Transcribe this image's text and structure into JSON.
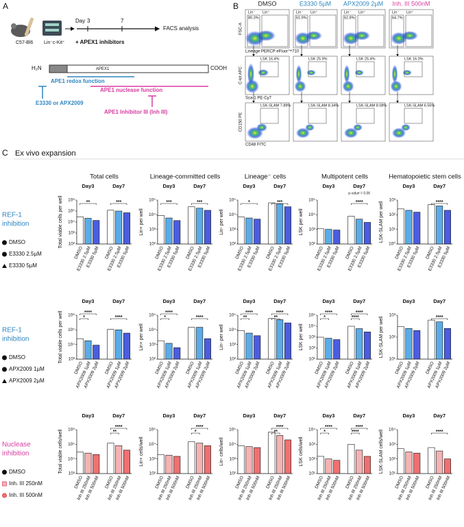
{
  "schema": {
    "label": "A",
    "mouse": "C57-Bl6",
    "cells": "Lin⁻c-Kit⁺",
    "day": "Day",
    "day_marks": [
      "3",
      "7"
    ],
    "readout": "FACS analysis",
    "treatment": "+ APEX1 inhibitors",
    "protein": {
      "n_term": "H₂N",
      "name": "APEX1",
      "c_term": "COOH"
    },
    "redox": "APE1 redox function",
    "nuclease": "APE1 nuclease function",
    "redox_inhibitors": "E3330 or APX2009",
    "nuclease_inhibitor": "APE1 Inhibitor III (Inh III)"
  },
  "flow": {
    "label": "B",
    "columns": [
      {
        "name": "DMSO",
        "color": "#222222"
      },
      {
        "name": "E3330 5µM",
        "color": "#2e86c1"
      },
      {
        "name": "APX2009 2µM",
        "color": "#2e86c1"
      },
      {
        "name": "Inh. III 500nM",
        "color": "#d63ca0"
      }
    ],
    "rows": [
      {
        "y_label": "FSC-A",
        "x_label": "Lineage PERCP eFluor™710",
        "gate_names": [
          "Lin⁻",
          "Lin⁺"
        ],
        "gates": [
          "80.3%",
          "61.9%",
          "62.8%",
          "64.7%"
        ]
      },
      {
        "y_label": "C-kit APC",
        "x_label": "Sca-1 PE-Cy7",
        "gates": [
          "LSK 16.4%",
          "LSK 25.9%",
          "LSK 25.4%",
          "LSK 16.0%"
        ]
      },
      {
        "y_label": "CD150 PE",
        "x_label": "CD48 FITC",
        "gates": [
          "LSK-SLAM 7.89%",
          "LSK-SLAM 8.34%",
          "LSK-SLAM 8.08%",
          "LSK-SLAM 6.55%"
        ]
      }
    ]
  },
  "expansion": {
    "label": "C",
    "title": "Ex vivo expansion",
    "columns": [
      "Total cells",
      "Lineage-committed cells",
      "Lineage⁻ cells",
      "Multipotent cells",
      "Hematopoietic stem cells"
    ],
    "rows": [
      {
        "label_lines": [
          "REF-1",
          "inhibition"
        ],
        "color": "#2e86c1",
        "legend": [
          {
            "name": "DMSO",
            "marker": "circle",
            "color": "#111111"
          },
          {
            "name": "E3330 2.5µM",
            "marker": "circle",
            "color": "#111111"
          },
          {
            "name": "E3330 5µM",
            "marker": "triangle",
            "color": "#111111"
          }
        ]
      },
      {
        "label_lines": [
          "REF-1",
          "inhibition"
        ],
        "color": "#2e86c1",
        "legend": [
          {
            "name": "DMSO",
            "marker": "circle",
            "color": "#111111"
          },
          {
            "name": "APX2009 1µM",
            "marker": "circle",
            "color": "#111111"
          },
          {
            "name": "APX2009 2µM",
            "marker": "triangle",
            "color": "#111111"
          }
        ]
      },
      {
        "label_lines": [
          "Nuclease",
          "inhibition"
        ],
        "color": "#d63ca0",
        "legend": [
          {
            "name": "DMSO",
            "marker": "circle",
            "color": "#111111"
          },
          {
            "name": "Inh. III 250nM",
            "marker": "square",
            "color": "#e06a8a"
          },
          {
            "name": "Inh. III 500nM",
            "marker": "circle",
            "color": "#e05050"
          }
        ]
      }
    ]
  },
  "chart_data": [
    {
      "type": "bar",
      "ylabel": "Total viable cells per well",
      "log": true,
      "ylim": [
        100,
        1000000
      ],
      "yticks": [
        {
          "value": 100,
          "label": "10²"
        },
        {
          "value": 1000,
          "label": "10³"
        },
        {
          "value": 10000,
          "label": "10⁴"
        },
        {
          "value": 100000,
          "label": "10⁵"
        },
        {
          "value": 1000000,
          "label": "10⁶"
        }
      ],
      "groups": [
        "Day3",
        "Day7"
      ],
      "categories": [
        "DMSO",
        "E3330 2.5µM",
        "E3330 5µM",
        "DMSO",
        "E3330 2.5µM",
        "E3330 5µM"
      ],
      "values": [
        30000,
        22000,
        14000,
        120000,
        100000,
        70000
      ],
      "colors": [
        "#ffffff",
        "#5aace8",
        "#4b5de0"
      ],
      "significance": [
        {
          "from": 0,
          "to": 2,
          "label": "**"
        },
        {
          "from": 3,
          "to": 5,
          "label": "***"
        }
      ]
    },
    {
      "type": "bar",
      "ylabel": "Lin+ per well",
      "log": true,
      "ylim": [
        100,
        100000
      ],
      "yticks": [
        {
          "value": 100,
          "label": "10²"
        },
        {
          "value": 1000,
          "label": "10³"
        },
        {
          "value": 10000,
          "label": "10⁴"
        },
        {
          "value": 100000,
          "label": "10⁵"
        }
      ],
      "groups": [
        "Day3",
        "Day7"
      ],
      "categories": [
        "DMSO",
        "E3330 2.5µM",
        "E3330 5µM",
        "DMSO",
        "E3330 2.5µM",
        "E3330 5µM"
      ],
      "values": [
        9000,
        6000,
        4000,
        35000,
        28000,
        20000
      ],
      "colors": [
        "#ffffff",
        "#5aace8",
        "#4b5de0"
      ],
      "significance": [
        {
          "from": 0,
          "to": 2,
          "label": "***"
        },
        {
          "from": 3,
          "to": 5,
          "label": "***"
        }
      ]
    },
    {
      "type": "bar",
      "ylabel": "Lin- per well",
      "log": true,
      "ylim": [
        100,
        100000
      ],
      "yticks": [
        {
          "value": 100,
          "label": "10²"
        },
        {
          "value": 1000,
          "label": "10³"
        },
        {
          "value": 10000,
          "label": "10⁴"
        },
        {
          "value": 100000,
          "label": "10⁵"
        }
      ],
      "groups": [
        "Day3",
        "Day7"
      ],
      "categories": [
        "DMSO",
        "E3330 2.5µM",
        "E3330 5µM",
        "DMSO",
        "E3330 2.5µM",
        "E3330 5µM"
      ],
      "values": [
        7000,
        6000,
        5000,
        65000,
        55000,
        35000
      ],
      "colors": [
        "#ffffff",
        "#5aace8",
        "#4b5de0"
      ],
      "significance": [
        {
          "from": 0,
          "to": 2,
          "label": "*"
        },
        {
          "from": 3,
          "to": 5,
          "label": "***"
        }
      ]
    },
    {
      "type": "bar",
      "ylabel": "LSK per well",
      "log": true,
      "ylim": [
        100,
        100000
      ],
      "yticks": [
        {
          "value": 100,
          "label": "10²"
        },
        {
          "value": 1000,
          "label": "10³"
        },
        {
          "value": 10000,
          "label": "10⁴"
        },
        {
          "value": 100000,
          "label": "10⁵"
        }
      ],
      "groups": [
        "Day3",
        "Day7"
      ],
      "categories": [
        "DMSO",
        "E3330 2.5µM",
        "E3330 5µM",
        "DMSO",
        "E3330 2.5µM",
        "E3330 5µM"
      ],
      "values": [
        1100,
        1000,
        900,
        8000,
        5000,
        3000
      ],
      "colors": [
        "#ffffff",
        "#5aace8",
        "#4b5de0"
      ],
      "significance": [
        {
          "from": 3,
          "to": 5,
          "label": "****"
        }
      ],
      "note": "p-value = 0.06"
    },
    {
      "type": "bar",
      "ylabel": "LSK-SLAM per well",
      "log": true,
      "ylim": [
        1,
        1000
      ],
      "yticks": [
        {
          "value": 1,
          "label": "10⁰"
        },
        {
          "value": 10,
          "label": "10¹"
        },
        {
          "value": 100,
          "label": "10²"
        },
        {
          "value": 1000,
          "label": "10³"
        }
      ],
      "groups": [
        "Day3",
        "Day7"
      ],
      "categories": [
        "DMSO",
        "E3330 2.5µM",
        "E3330 5µM",
        "DMSO",
        "E3330 2.5µM",
        "E3330 5µM"
      ],
      "values": [
        250,
        200,
        150,
        500,
        400,
        200
      ],
      "colors": [
        "#ffffff",
        "#5aace8",
        "#4b5de0"
      ],
      "significance": [
        {
          "from": 3,
          "to": 5,
          "label": "****"
        }
      ]
    },
    {
      "type": "bar",
      "ylabel": "Total viable cells per well",
      "log": true,
      "ylim": [
        1000,
        1000000
      ],
      "yticks": [
        {
          "value": 1000,
          "label": "10³"
        },
        {
          "value": 10000,
          "label": "10⁴"
        },
        {
          "value": 100000,
          "label": "10⁵"
        },
        {
          "value": 1000000,
          "label": "10⁶"
        }
      ],
      "groups": [
        "Day3",
        "Day7"
      ],
      "categories": [
        "DMSO",
        "APX2009 1µM",
        "APX2009 2µM",
        "DMSO",
        "APX2009 1µM",
        "APX2009 2µM"
      ],
      "values": [
        25000,
        18000,
        9000,
        110000,
        100000,
        60000
      ],
      "colors": [
        "#ffffff",
        "#5aace8",
        "#4b5de0"
      ],
      "significance": [
        {
          "from": 0,
          "to": 1,
          "label": "*"
        },
        {
          "from": 0,
          "to": 2,
          "label": "****"
        },
        {
          "from": 3,
          "to": 5,
          "label": "****"
        }
      ]
    },
    {
      "type": "bar",
      "ylabel": "Lin+ per well",
      "log": true,
      "ylim": [
        100,
        100000
      ],
      "yticks": [
        {
          "value": 100,
          "label": "10²"
        },
        {
          "value": 1000,
          "label": "10³"
        },
        {
          "value": 10000,
          "label": "10⁴"
        },
        {
          "value": 100000,
          "label": "10⁵"
        }
      ],
      "groups": [
        "Day3",
        "Day7"
      ],
      "categories": [
        "DMSO",
        "APX2009 1µM",
        "APX2009 2µM",
        "DMSO",
        "APX2009 1µM",
        "APX2009 2µM"
      ],
      "values": [
        1800,
        1200,
        600,
        15000,
        15000,
        2500
      ],
      "colors": [
        "#ffffff",
        "#5aace8",
        "#4b5de0"
      ],
      "significance": [
        {
          "from": 0,
          "to": 1,
          "label": "*"
        },
        {
          "from": 0,
          "to": 2,
          "label": "****"
        },
        {
          "from": 3,
          "to": 5,
          "label": "****"
        }
      ]
    },
    {
      "type": "bar",
      "ylabel": "Lin- per well",
      "log": true,
      "ylim": [
        100,
        100000
      ],
      "yticks": [
        {
          "value": 100,
          "label": "10²"
        },
        {
          "value": 1000,
          "label": "10³"
        },
        {
          "value": 10000,
          "label": "10⁴"
        },
        {
          "value": 100000,
          "label": "10⁵"
        }
      ],
      "groups": [
        "Day3",
        "Day7"
      ],
      "categories": [
        "DMSO",
        "APX2009 1µM",
        "APX2009 2µM",
        "DMSO",
        "APX2009 1µM",
        "APX2009 2µM"
      ],
      "values": [
        9000,
        6000,
        4000,
        60000,
        50000,
        30000
      ],
      "colors": [
        "#ffffff",
        "#5aace8",
        "#4b5de0"
      ],
      "significance": [
        {
          "from": 0,
          "to": 1,
          "label": "**"
        },
        {
          "from": 0,
          "to": 2,
          "label": "****"
        },
        {
          "from": 3,
          "to": 4,
          "label": "**"
        },
        {
          "from": 3,
          "to": 5,
          "label": "****"
        }
      ]
    },
    {
      "type": "bar",
      "ylabel": "LSK per well",
      "log": true,
      "ylim": [
        10,
        100000
      ],
      "yticks": [
        {
          "value": 10,
          "label": "10¹"
        },
        {
          "value": 100,
          "label": "10²"
        },
        {
          "value": 1000,
          "label": "10³"
        },
        {
          "value": 10000,
          "label": "10⁴"
        },
        {
          "value": 100000,
          "label": "10⁵"
        }
      ],
      "groups": [
        "Day3",
        "Day7"
      ],
      "categories": [
        "DMSO",
        "APX2009 1µM",
        "APX2009 2µM",
        "DMSO",
        "APX2009 1µM",
        "APX2009 2µM"
      ],
      "values": [
        1000,
        800,
        600,
        10000,
        6000,
        3000
      ],
      "colors": [
        "#ffffff",
        "#5aace8",
        "#4b5de0"
      ],
      "significance": [
        {
          "from": 0,
          "to": 1,
          "label": "*"
        },
        {
          "from": 0,
          "to": 2,
          "label": "****"
        },
        {
          "from": 3,
          "to": 4,
          "label": "****"
        },
        {
          "from": 3,
          "to": 5,
          "label": "****"
        }
      ]
    },
    {
      "type": "bar",
      "ylabel": "LSK-SLAM per well",
      "log": true,
      "ylim": [
        10,
        1000
      ],
      "yticks": [
        {
          "value": 10,
          "label": "10¹"
        },
        {
          "value": 100,
          "label": "10²"
        },
        {
          "value": 1000,
          "label": "10³"
        }
      ],
      "groups": [
        "Day3",
        "Day7"
      ],
      "categories": [
        "DMSO",
        "APX2009 1µM",
        "APX2009 2µM",
        "DMSO",
        "APX2009 1µM",
        "APX2009 2µM"
      ],
      "values": [
        300,
        250,
        200,
        600,
        500,
        250
      ],
      "colors": [
        "#ffffff",
        "#5aace8",
        "#4b5de0"
      ],
      "significance": [
        {
          "from": 3,
          "to": 5,
          "label": "****"
        }
      ]
    },
    {
      "type": "bar",
      "ylabel": "Total viable cells/well",
      "log": true,
      "ylim": [
        1000,
        1000000
      ],
      "yticks": [
        {
          "value": 1000,
          "label": "10³"
        },
        {
          "value": 10000,
          "label": "10⁴"
        },
        {
          "value": 100000,
          "label": "10⁵"
        },
        {
          "value": 1000000,
          "label": "10⁶"
        }
      ],
      "groups": [
        "Day3",
        "Day7"
      ],
      "categories": [
        "DMSO",
        "Inh III 250nM",
        "Inh III 500nM",
        "DMSO",
        "Inh III 250nM",
        "Inh III 500nM"
      ],
      "values": [
        30000,
        25000,
        20000,
        120000,
        80000,
        40000
      ],
      "colors": [
        "#ffffff",
        "#f5b3b3",
        "#f07070"
      ],
      "significance": [
        {
          "from": 3,
          "to": 4,
          "label": "**"
        },
        {
          "from": 3,
          "to": 5,
          "label": "****"
        }
      ]
    },
    {
      "type": "bar",
      "ylabel": "Lin+ cells/well",
      "log": true,
      "ylim": [
        100,
        100000
      ],
      "yticks": [
        {
          "value": 100,
          "label": "10²"
        },
        {
          "value": 1000,
          "label": "10³"
        },
        {
          "value": 10000,
          "label": "10⁴"
        },
        {
          "value": 100000,
          "label": "10⁵"
        }
      ],
      "groups": [
        "Day3",
        "Day7"
      ],
      "categories": [
        "DMSO",
        "Inh III 250nM",
        "Inh III 500nM",
        "DMSO",
        "Inh III 250nM",
        "Inh III 500nM"
      ],
      "values": [
        2000,
        1800,
        1500,
        15000,
        12000,
        8000
      ],
      "colors": [
        "#ffffff",
        "#f5b3b3",
        "#f07070"
      ],
      "significance": [
        {
          "from": 3,
          "to": 4,
          "label": "*"
        },
        {
          "from": 3,
          "to": 5,
          "label": "****"
        }
      ]
    },
    {
      "type": "bar",
      "ylabel": "Lin- cells/well",
      "log": true,
      "ylim": [
        100,
        100000
      ],
      "yticks": [
        {
          "value": 100,
          "label": "10²"
        },
        {
          "value": 1000,
          "label": "10³"
        },
        {
          "value": 10000,
          "label": "10⁴"
        },
        {
          "value": 100000,
          "label": "10⁵"
        }
      ],
      "groups": [
        "Day3",
        "Day7"
      ],
      "categories": [
        "DMSO",
        "Inh III 250nM",
        "Inh III 500nM",
        "DMSO",
        "Inh III 250nM",
        "Inh III 500nM"
      ],
      "values": [
        8000,
        7000,
        6000,
        70000,
        40000,
        20000
      ],
      "colors": [
        "#ffffff",
        "#f5b3b3",
        "#f07070"
      ],
      "significance": [
        {
          "from": 3,
          "to": 4,
          "label": "**"
        },
        {
          "from": 3,
          "to": 5,
          "label": "****"
        }
      ]
    },
    {
      "type": "bar",
      "ylabel": "LSK cells/well",
      "log": true,
      "ylim": [
        10,
        10000
      ],
      "yticks": [
        {
          "value": 10,
          "label": "10¹"
        },
        {
          "value": 100,
          "label": "10²"
        },
        {
          "value": 1000,
          "label": "10³"
        },
        {
          "value": 10000,
          "label": "10⁴"
        }
      ],
      "groups": [
        "Day3",
        "Day7"
      ],
      "categories": [
        "DMSO",
        "Inh III 250nM",
        "Inh III 500nM",
        "DMSO",
        "Inh III 250nM",
        "Inh III 500nM"
      ],
      "values": [
        150,
        100,
        80,
        1000,
        400,
        150
      ],
      "colors": [
        "#ffffff",
        "#f5b3b3",
        "#f07070"
      ],
      "significance": [
        {
          "from": 0,
          "to": 1,
          "label": "*"
        },
        {
          "from": 0,
          "to": 2,
          "label": "****"
        },
        {
          "from": 3,
          "to": 4,
          "label": "****"
        },
        {
          "from": 3,
          "to": 5,
          "label": "****"
        }
      ]
    },
    {
      "type": "bar",
      "ylabel": "LSK-SLAM cells/well",
      "log": true,
      "ylim": [
        10,
        10000
      ],
      "yticks": [
        {
          "value": 10,
          "label": "10¹"
        },
        {
          "value": 100,
          "label": "10²"
        },
        {
          "value": 1000,
          "label": "10³"
        },
        {
          "value": 10000,
          "label": "10⁴"
        }
      ],
      "groups": [
        "Day3",
        "Day7"
      ],
      "categories": [
        "DMSO",
        "Inh III 250nM",
        "Inh III 500nM",
        "DMSO",
        "Inh III 250nM",
        "Inh III 500nM"
      ],
      "values": [
        500,
        300,
        250,
        600,
        350,
        100
      ],
      "colors": [
        "#ffffff",
        "#f5b3b3",
        "#f07070"
      ],
      "significance": [
        {
          "from": 3,
          "to": 5,
          "label": "****"
        }
      ]
    }
  ]
}
